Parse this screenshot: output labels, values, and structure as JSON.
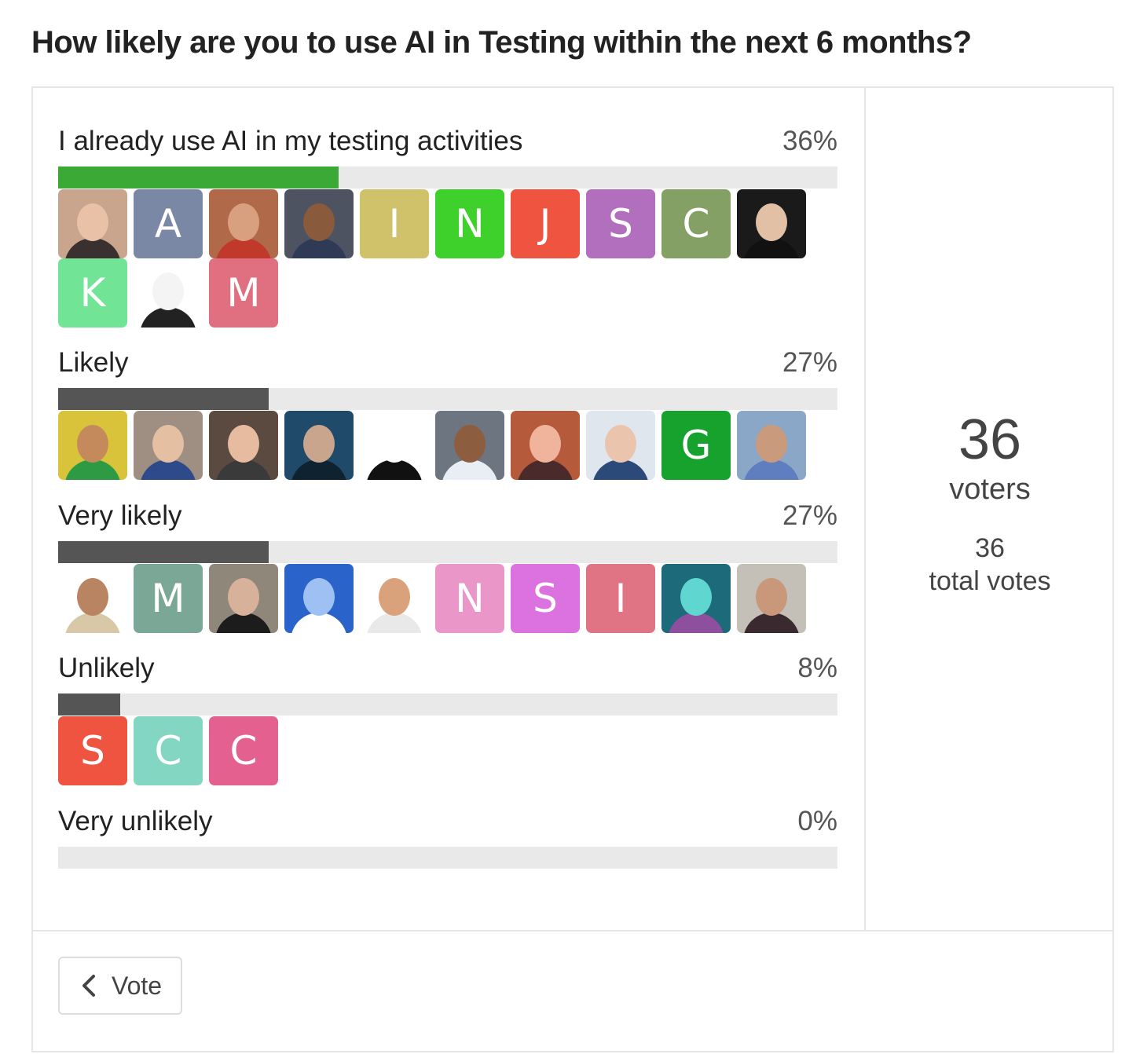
{
  "title": "How likely are you to use AI in Testing within the next 6 months?",
  "options": [
    {
      "label": "I already use AI in my testing activities",
      "percent_text": "36%",
      "percent": 36,
      "leading": true,
      "voters": [
        {
          "kind": "photo",
          "bg": "#c9a58d",
          "face": "#e8c1a6",
          "body": "#3a3030"
        },
        {
          "kind": "letter",
          "letter": "A",
          "bg": "#7a88a6"
        },
        {
          "kind": "photo",
          "bg": "#b06a4a",
          "face": "#d9a07f",
          "body": "#c0392b"
        },
        {
          "kind": "photo",
          "bg": "#4d5360",
          "face": "#8a5a3c",
          "body": "#2e3a56"
        },
        {
          "kind": "letter",
          "letter": "I",
          "bg": "#d0c26a"
        },
        {
          "kind": "letter",
          "letter": "N",
          "bg": "#3fd12b"
        },
        {
          "kind": "letter",
          "letter": "J",
          "bg": "#ee5440"
        },
        {
          "kind": "letter",
          "letter": "S",
          "bg": "#b26fbe"
        },
        {
          "kind": "letter",
          "letter": "C",
          "bg": "#85a065"
        },
        {
          "kind": "photo",
          "bg": "#1a1a1a",
          "face": "#e2c0a5",
          "body": "#111111"
        },
        {
          "kind": "letter",
          "letter": "K",
          "bg": "#71e495"
        },
        {
          "kind": "photo",
          "bg": "#ffffff",
          "face": "#f4f4f4",
          "body": "#222222"
        },
        {
          "kind": "letter",
          "letter": "M",
          "bg": "#e0707f"
        }
      ]
    },
    {
      "label": "Likely",
      "percent_text": "27%",
      "percent": 27,
      "leading": false,
      "voters": [
        {
          "kind": "photo",
          "bg": "#d8c33a",
          "face": "#c58a5c",
          "body": "#2e9b44"
        },
        {
          "kind": "photo",
          "bg": "#9e8f82",
          "face": "#e4bfa1",
          "body": "#2f4a8a"
        },
        {
          "kind": "photo",
          "bg": "#5a4a40",
          "face": "#e6bba0",
          "body": "#3a3a3a"
        },
        {
          "kind": "photo",
          "bg": "#1f4a6a",
          "face": "#c9a58e",
          "body": "#0f2230"
        },
        {
          "kind": "photo",
          "bg": "#ffffff",
          "face": "#ffffff",
          "body": "#111111"
        },
        {
          "kind": "photo",
          "bg": "#6c7580",
          "face": "#8d5d3f",
          "body": "#e9eef5"
        },
        {
          "kind": "photo",
          "bg": "#b65a3c",
          "face": "#f0b39c",
          "body": "#4a2a2a"
        },
        {
          "kind": "photo",
          "bg": "#dfe6ee",
          "face": "#eac4ac",
          "body": "#2b4a7a"
        },
        {
          "kind": "letter",
          "letter": "G",
          "bg": "#16a22d"
        },
        {
          "kind": "photo",
          "bg": "#8aa7c8",
          "face": "#c99a7b",
          "body": "#5f7ec0"
        }
      ]
    },
    {
      "label": "Very likely",
      "percent_text": "27%",
      "percent": 27,
      "leading": false,
      "voters": [
        {
          "kind": "photo",
          "bg": "#ffffff",
          "face": "#b98462",
          "body": "#d8c8a8"
        },
        {
          "kind": "letter",
          "letter": "M",
          "bg": "#7ba796"
        },
        {
          "kind": "photo",
          "bg": "#8f877a",
          "face": "#d8b19a",
          "body": "#1c1c1c"
        },
        {
          "kind": "photo",
          "bg": "#2a63c9",
          "face": "#9ec0f2",
          "body": "#ffffff"
        },
        {
          "kind": "photo",
          "bg": "#ffffff",
          "face": "#d9a27a",
          "body": "#e9e9e9"
        },
        {
          "kind": "letter",
          "letter": "N",
          "bg": "#ea96c8"
        },
        {
          "kind": "letter",
          "letter": "S",
          "bg": "#dc72e0"
        },
        {
          "kind": "letter",
          "letter": "I",
          "bg": "#e07484"
        },
        {
          "kind": "photo",
          "bg": "#1d6a7a",
          "face": "#5fd7d0",
          "body": "#8e4f9e"
        },
        {
          "kind": "photo",
          "bg": "#c4c0b8",
          "face": "#c99779",
          "body": "#3a2a30"
        }
      ]
    },
    {
      "label": "Unlikely",
      "percent_text": "8%",
      "percent": 8,
      "leading": false,
      "voters": [
        {
          "kind": "letter",
          "letter": "S",
          "bg": "#ee5440"
        },
        {
          "kind": "letter",
          "letter": "C",
          "bg": "#82d6c2"
        },
        {
          "kind": "letter",
          "letter": "C",
          "bg": "#e4608f"
        }
      ]
    },
    {
      "label": "Very unlikely",
      "percent_text": "0%",
      "percent": 0,
      "leading": false,
      "voters": []
    }
  ],
  "summary": {
    "voters_count": "36",
    "voters_label": "voters",
    "votes_count": "36",
    "votes_label": "total votes"
  },
  "footer": {
    "vote_label": "Vote",
    "vote_icon": "chevron-left-icon"
  },
  "colors": {
    "leading_bar": "#3aa935",
    "bar": "#555555",
    "track": "#e9e9e9"
  }
}
